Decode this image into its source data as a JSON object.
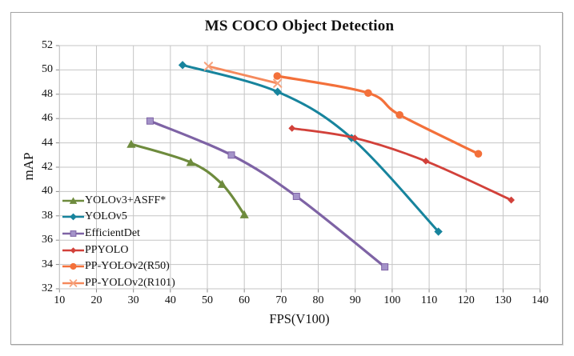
{
  "chart_data": {
    "type": "line",
    "title": "MS COCO Object Detection",
    "xlabel": "FPS(V100)",
    "ylabel": "mAP",
    "xlim": [
      10,
      140
    ],
    "ylim": [
      32,
      52
    ],
    "xticks": [
      10,
      20,
      30,
      40,
      50,
      60,
      70,
      80,
      90,
      100,
      110,
      120,
      130,
      140
    ],
    "yticks": [
      32,
      34,
      36,
      38,
      40,
      42,
      44,
      46,
      48,
      50,
      52
    ],
    "grid": true,
    "legend_position": "inside-lower-left",
    "style": {
      "grid_color": "#c5c5c5",
      "tick_color": "#8a8a8a",
      "frame_color": "#a3a3a3",
      "text_color": "#111111",
      "background": "#ffffff"
    },
    "series": [
      {
        "name": "YOLOv3+ASFF*",
        "color": "#6e8b3d",
        "marker": "triangle",
        "marker_fill": "#6e8b3d",
        "line_width": 3.2,
        "points": [
          [
            29.4,
            43.9
          ],
          [
            45.5,
            42.4
          ],
          [
            54,
            40.6
          ],
          [
            60,
            38.1
          ]
        ]
      },
      {
        "name": "YOLOv5",
        "color": "#17849d",
        "marker": "diamond",
        "marker_fill": "#17849d",
        "line_width": 3.0,
        "points": [
          [
            43.3,
            50.4
          ],
          [
            69,
            48.2
          ],
          [
            89,
            44.4
          ],
          [
            112.5,
            36.7
          ]
        ]
      },
      {
        "name": "EfficientDet",
        "color": "#7e63a5",
        "marker": "square",
        "marker_fill": "#a493c9",
        "line_width": 3.2,
        "points": [
          [
            34.5,
            45.8
          ],
          [
            56.5,
            43.0
          ],
          [
            74.1,
            39.6
          ],
          [
            98,
            33.8
          ]
        ]
      },
      {
        "name": "PPYOLO",
        "color": "#d2413a",
        "marker": "diamond-small",
        "marker_fill": "#d2413a",
        "line_width": 2.8,
        "points": [
          [
            72.9,
            45.2
          ],
          [
            89.9,
            44.4
          ],
          [
            109.1,
            42.5
          ],
          [
            132.2,
            39.3
          ]
        ]
      },
      {
        "name": "PP-YOLOv2(R50)",
        "color": "#f3703a",
        "marker": "circle",
        "marker_fill": "#f3703a",
        "line_width": 3.2,
        "points": [
          [
            68.9,
            49.5
          ],
          [
            93.5,
            48.1
          ],
          [
            102,
            46.3
          ],
          [
            123.3,
            43.1
          ]
        ]
      },
      {
        "name": "PP-YOLOv2(R101)",
        "color": "#f5895c",
        "marker": "x",
        "marker_fill": "#f5a37e",
        "line_width": 2.8,
        "points": [
          [
            50.3,
            50.3
          ],
          [
            69,
            48.9
          ]
        ]
      }
    ]
  }
}
